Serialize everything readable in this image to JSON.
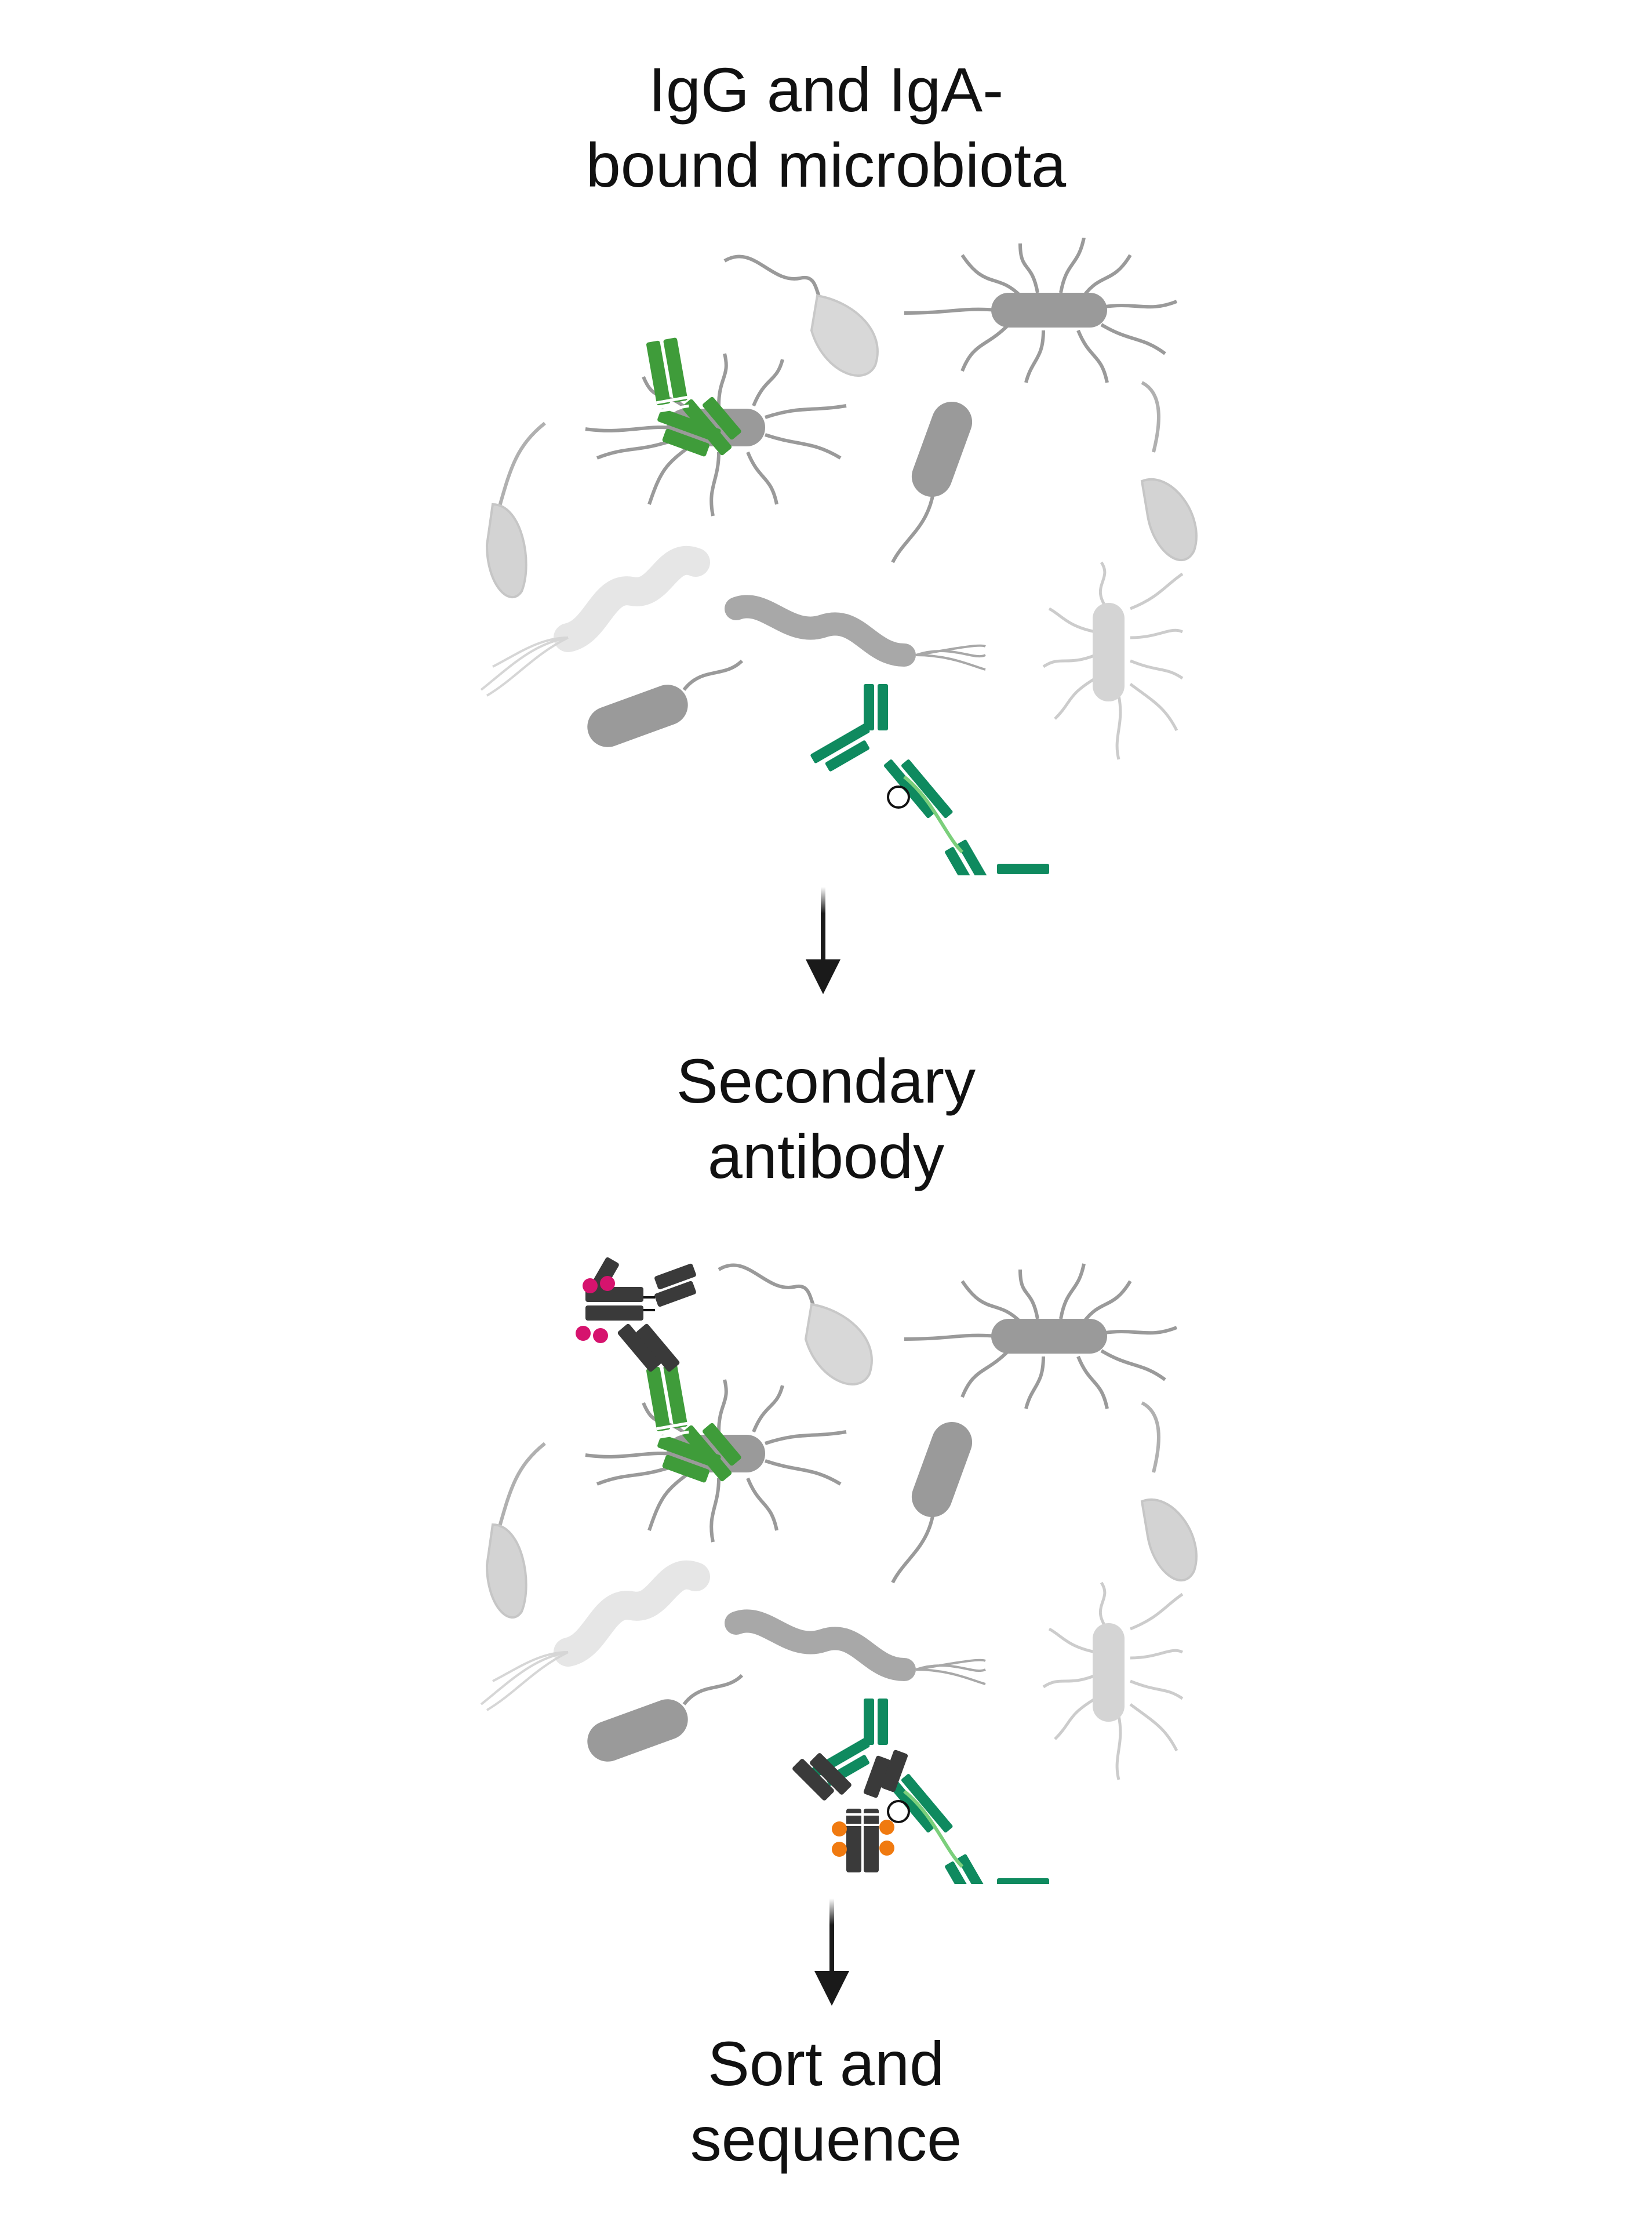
{
  "steps": [
    {
      "lines": [
        "IgG and IgA-",
        "bound microbiota"
      ]
    },
    {
      "lines": [
        "Secondary",
        "antibody"
      ]
    },
    {
      "lines": [
        "Sort and",
        "sequence"
      ]
    }
  ],
  "colors": {
    "bacteria_dark": "#9a9a9a",
    "bacteria_light": "#cfcfcf",
    "bacteria_faint": "#e0e0e0",
    "igg_green": "#3f9c3a",
    "iga_green": "#0f8a5f",
    "secondary_antibody": "#3a3a3a",
    "fluor_magenta": "#d6136e",
    "fluor_orange": "#f07a10",
    "arrow": "#1a1a1a"
  },
  "icons": [
    "bacterium-icon",
    "antibody-icon",
    "secondary-antibody-icon",
    "fluorophore-icon",
    "down-arrow-icon"
  ]
}
